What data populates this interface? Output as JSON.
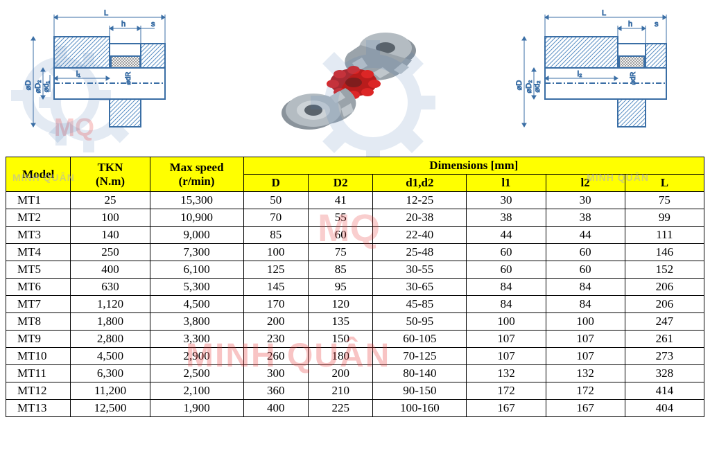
{
  "diagrams": {
    "left": {
      "dim_labels": [
        "L",
        "h",
        "s",
        "⌀D",
        "⌀D₂",
        "⌀d₁",
        "l₁",
        "⌀dR"
      ],
      "hatch_color": "#5a8fc4",
      "line_color": "#3a6ea5",
      "dim_line_color": "#3a6ea5",
      "background": "#ffffff"
    },
    "right": {
      "dim_labels": [
        "L",
        "h",
        "s",
        "⌀D",
        "⌀D₂",
        "⌀d₂",
        "l₂",
        "⌀dR"
      ],
      "hatch_color": "#5a8fc4",
      "line_color": "#3a6ea5",
      "dim_line_color": "#3a6ea5",
      "background": "#ffffff"
    },
    "render": {
      "hub_color": "#a8b0b5",
      "spider_color": "#dc2626",
      "highlight": "#d4dade",
      "shadow": "#6b7680"
    }
  },
  "table": {
    "header_row1": [
      "Model",
      "TKN\n(N.m)",
      "Max speed\n(r/min)",
      "Dimensions [mm]"
    ],
    "header_row2": [
      "D",
      "D2",
      "d1,d2",
      "l1",
      "l2",
      "L"
    ],
    "header_bg": "#ffff00",
    "border_color": "#000000",
    "font_size": 17,
    "rows": [
      [
        "MT1",
        "25",
        "15,300",
        "50",
        "41",
        "12-25",
        "30",
        "30",
        "75"
      ],
      [
        "MT2",
        "100",
        "10,900",
        "70",
        "55",
        "20-38",
        "38",
        "38",
        "99"
      ],
      [
        "MT3",
        "140",
        "9,000",
        "85",
        "60",
        "22-40",
        "44",
        "44",
        "111"
      ],
      [
        "MT4",
        "250",
        "7,300",
        "100",
        "75",
        "25-48",
        "60",
        "60",
        "146"
      ],
      [
        "MT5",
        "400",
        "6,100",
        "125",
        "85",
        "30-55",
        "60",
        "60",
        "152"
      ],
      [
        "MT6",
        "630",
        "5,300",
        "145",
        "95",
        "30-65",
        "84",
        "84",
        "206"
      ],
      [
        "MT7",
        "1,120",
        "4,500",
        "170",
        "120",
        "45-85",
        "84",
        "84",
        "206"
      ],
      [
        "MT8",
        "1,800",
        "3,800",
        "200",
        "135",
        "50-95",
        "100",
        "100",
        "247"
      ],
      [
        "MT9",
        "2,800",
        "3,300",
        "230",
        "150",
        "60-105",
        "107",
        "107",
        "261"
      ],
      [
        "MT10",
        "4,500",
        "2,900",
        "260",
        "180",
        "70-125",
        "107",
        "107",
        "273"
      ],
      [
        "MT11",
        "6,300",
        "2,500",
        "300",
        "200",
        "80-140",
        "132",
        "132",
        "328"
      ],
      [
        "MT12",
        "11,200",
        "2,100",
        "360",
        "210",
        "90-150",
        "172",
        "172",
        "414"
      ],
      [
        "MT13",
        "12,500",
        "1,900",
        "400",
        "225",
        "100-160",
        "167",
        "167",
        "404"
      ]
    ],
    "col_widths_pct": [
      9,
      11,
      13,
      9,
      9,
      13,
      11,
      11,
      11
    ]
  },
  "watermarks": {
    "mq": "MQ",
    "brand": "MINH QUÂN",
    "brand_color_rgba": "rgba(232,60,60,0.3)",
    "gear_color": "#4a7bb5"
  }
}
